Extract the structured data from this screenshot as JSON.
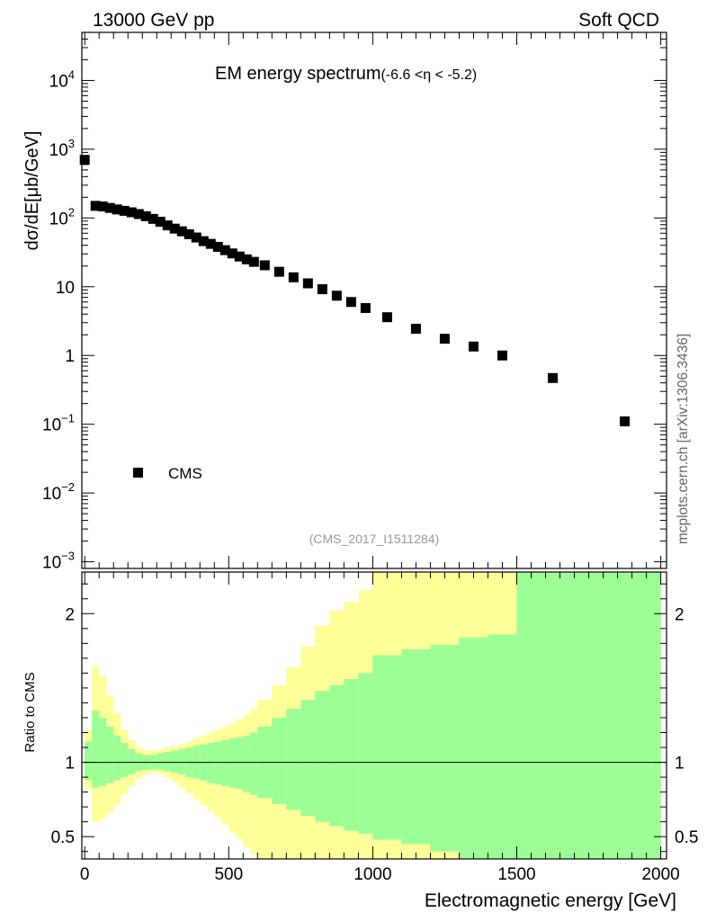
{
  "header": {
    "left": "13000 GeV pp",
    "right": "Soft QCD"
  },
  "sidelabel": "mcplots.cern.ch [arXiv:1306.3436]",
  "chart_data": {
    "type": "scatter",
    "title_main": "EM energy spectrum",
    "title_sub": "(-6.6 <η < -5.2)",
    "analysis": "(CMS_2017_I1511284)",
    "xlabel": "Electromagnetic energy [GeV]",
    "ylabel_top": "dσ/dE[μb/GeV]",
    "ylabel_bottom": "Ratio to CMS",
    "xlim": [
      -10,
      2020
    ],
    "ylim_top": [
      0.0008,
      50000
    ],
    "yscale_top": "log",
    "ylim_ratio": [
      0.35,
      2.28
    ],
    "legend": {
      "label": "CMS",
      "position": "bottom-left"
    },
    "x_ticks": [
      "0",
      "500",
      "1000",
      "1500",
      "2000"
    ],
    "y_ticks_top": [
      {
        "base": "10",
        "exp": "4",
        "v": 10000
      },
      {
        "base": "10",
        "exp": "3",
        "v": 1000
      },
      {
        "base": "10",
        "exp": "2",
        "v": 100
      },
      {
        "base": "10",
        "exp": "",
        "v": 10
      },
      {
        "base": "1",
        "exp": "",
        "v": 1
      },
      {
        "base": "10",
        "exp": "−1",
        "v": 0.1
      },
      {
        "base": "10",
        "exp": "−2",
        "v": 0.01
      },
      {
        "base": "10",
        "exp": "−3",
        "v": 0.001
      }
    ],
    "ratio_ticks": [
      "2",
      "1",
      "0.5"
    ],
    "series": [
      {
        "name": "CMS",
        "x": [
          0,
          37.5,
          62.5,
          87.5,
          112.5,
          137.5,
          162.5,
          187.5,
          212.5,
          237.5,
          262.5,
          287.5,
          312.5,
          337.5,
          362.5,
          387.5,
          412.5,
          437.5,
          462.5,
          487.5,
          512.5,
          537.5,
          562.5,
          587.5,
          625,
          675,
          725,
          775,
          825,
          875,
          925,
          975,
          1050,
          1150,
          1250,
          1350,
          1450,
          1625,
          1875
        ],
        "y": [
          700,
          150,
          147,
          140,
          133,
          127,
          121,
          114,
          106,
          97,
          88,
          78,
          70,
          64,
          58,
          52,
          46,
          42,
          38,
          34,
          30.5,
          27.5,
          25,
          23,
          20.5,
          16.5,
          13.7,
          11.2,
          9.2,
          7.4,
          6,
          4.9,
          3.6,
          2.45,
          1.75,
          1.35,
          1.0,
          0.47,
          0.11
        ]
      }
    ],
    "ratio_bands": {
      "edges": [
        0,
        25,
        50,
        75,
        100,
        125,
        150,
        175,
        200,
        225,
        250,
        275,
        300,
        325,
        350,
        375,
        400,
        425,
        450,
        475,
        500,
        525,
        550,
        575,
        600,
        650,
        700,
        750,
        800,
        850,
        900,
        950,
        1000,
        1100,
        1200,
        1300,
        1400,
        1500,
        1750,
        2000
      ],
      "inner_upper": [
        1.14,
        1.35,
        1.3,
        1.24,
        1.18,
        1.13,
        1.09,
        1.06,
        1.05,
        1.05,
        1.06,
        1.07,
        1.08,
        1.09,
        1.1,
        1.11,
        1.12,
        1.13,
        1.14,
        1.15,
        1.16,
        1.17,
        1.18,
        1.2,
        1.24,
        1.3,
        1.36,
        1.42,
        1.48,
        1.52,
        1.56,
        1.6,
        1.72,
        1.76,
        1.79,
        1.84,
        1.86,
        2.28,
        2.28
      ],
      "inner_lower": [
        0.88,
        0.83,
        0.84,
        0.86,
        0.88,
        0.9,
        0.92,
        0.94,
        0.95,
        0.95,
        0.95,
        0.94,
        0.93,
        0.92,
        0.9,
        0.89,
        0.88,
        0.86,
        0.85,
        0.84,
        0.83,
        0.82,
        0.8,
        0.78,
        0.76,
        0.72,
        0.68,
        0.64,
        0.6,
        0.57,
        0.54,
        0.52,
        0.48,
        0.45,
        0.4,
        0.35,
        0.35,
        0.35,
        0.35
      ],
      "outer_upper": [
        1.22,
        1.65,
        1.58,
        1.45,
        1.33,
        1.22,
        1.15,
        1.1,
        1.08,
        1.08,
        1.09,
        1.1,
        1.11,
        1.12,
        1.14,
        1.16,
        1.18,
        1.2,
        1.22,
        1.24,
        1.26,
        1.29,
        1.32,
        1.36,
        1.42,
        1.52,
        1.64,
        1.78,
        1.92,
        2.02,
        2.08,
        2.16,
        2.28,
        2.28,
        2.28,
        2.28,
        2.28,
        2.28,
        2.28
      ],
      "outer_lower": [
        0.82,
        0.6,
        0.62,
        0.66,
        0.72,
        0.78,
        0.84,
        0.89,
        0.92,
        0.93,
        0.92,
        0.9,
        0.87,
        0.83,
        0.79,
        0.75,
        0.71,
        0.67,
        0.63,
        0.58,
        0.53,
        0.48,
        0.43,
        0.38,
        0.35,
        0.35,
        0.35,
        0.35,
        0.35,
        0.35,
        0.35,
        0.35,
        0.35,
        0.35,
        0.35,
        0.35,
        0.35,
        0.35,
        0.35
      ]
    },
    "colors": {
      "inner_band": "#9cff96",
      "outer_band": "#ffff99",
      "marker": "#000000"
    }
  }
}
